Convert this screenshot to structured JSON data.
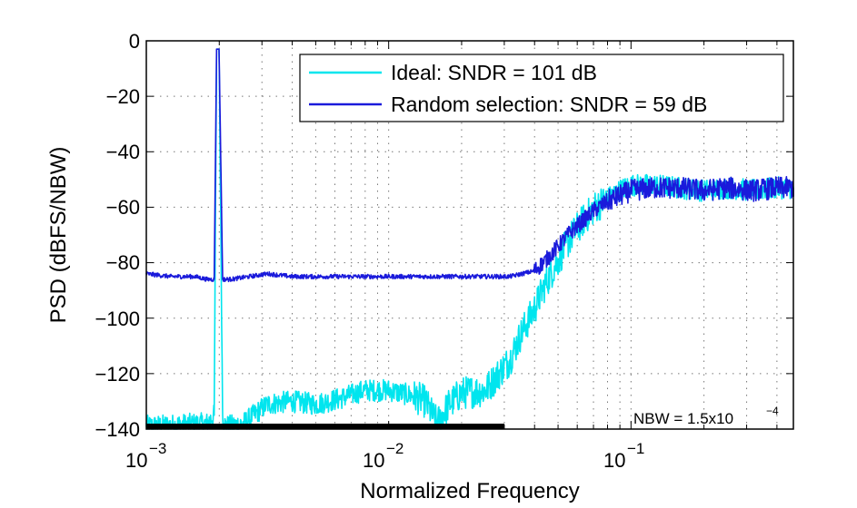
{
  "chart_data": {
    "type": "line",
    "xscale": "log",
    "xlim_exp": [
      -3,
      -0.33
    ],
    "ylim": [
      -140,
      0
    ],
    "xlabel": "Normalized Frequency",
    "ylabel": "PSD (dBFS/NBW)",
    "ytick_values": [
      0,
      -20,
      -40,
      -60,
      -80,
      -100,
      -120,
      -140
    ],
    "ytick_labels": [
      "0",
      "−20",
      "−40",
      "−60",
      "−80",
      "−100",
      "−120",
      "−140"
    ],
    "xtick_exponents": [
      -3,
      -2,
      -1
    ],
    "xtick_base": "10",
    "xtick_exp_labels": [
      "−3",
      "−2",
      "−1"
    ],
    "grid": true,
    "legend_position": "top-right",
    "annotation": {
      "prefix": "NBW = 1.5x10",
      "exponent": "−4"
    },
    "series": [
      {
        "name": "Ideal: SNDR = 101 dB",
        "color": "#00e5ee",
        "x_log10": [
          -3.0,
          -2.75,
          -2.72,
          -2.71,
          -2.7,
          -2.685,
          -2.68,
          -2.67,
          -2.6,
          -2.5,
          -2.4,
          -2.3,
          -2.2,
          -2.1,
          -2.0,
          -1.9,
          -1.85,
          -1.8,
          -1.75,
          -1.7,
          -1.6,
          -1.5,
          -1.45,
          -1.4,
          -1.35,
          -1.3,
          -1.25,
          -1.2,
          -1.15,
          -1.1,
          -1.05,
          -1.0,
          -0.9,
          -0.8,
          -0.7,
          -0.6,
          -0.5,
          -0.4,
          -0.33
        ],
        "values": [
          -139,
          -138,
          -135,
          -3,
          -3,
          -135,
          -138,
          -139,
          -138,
          -131,
          -130,
          -131,
          -129,
          -126,
          -126,
          -128,
          -130,
          -138,
          -131,
          -127,
          -126,
          -115,
          -105,
          -97,
          -87,
          -79,
          -71,
          -65,
          -60,
          -57,
          -54,
          -52,
          -52,
          -53,
          -54,
          -53,
          -54,
          -53,
          -53
        ]
      },
      {
        "name": "Random selection: SNDR = 59 dB",
        "color": "#1a1adb",
        "x_log10": [
          -3.0,
          -2.9,
          -2.8,
          -2.75,
          -2.72,
          -2.71,
          -2.7,
          -2.685,
          -2.68,
          -2.65,
          -2.5,
          -2.4,
          -2.3,
          -2.2,
          -2.0,
          -1.8,
          -1.6,
          -1.5,
          -1.4,
          -1.35,
          -1.3,
          -1.25,
          -1.2,
          -1.15,
          -1.1,
          -1.05,
          -1.0,
          -0.9,
          -0.8,
          -0.7,
          -0.6,
          -0.5,
          -0.4,
          -0.33
        ],
        "values": [
          -84,
          -85,
          -85,
          -86,
          -86,
          -3,
          -3,
          -86,
          -86,
          -86,
          -84,
          -85,
          -85,
          -85,
          -85,
          -85,
          -85,
          -85,
          -83,
          -79,
          -74,
          -69,
          -65,
          -61,
          -58,
          -56,
          -54,
          -53,
          -53,
          -54,
          -53,
          -54,
          -53,
          -53
        ]
      }
    ]
  }
}
